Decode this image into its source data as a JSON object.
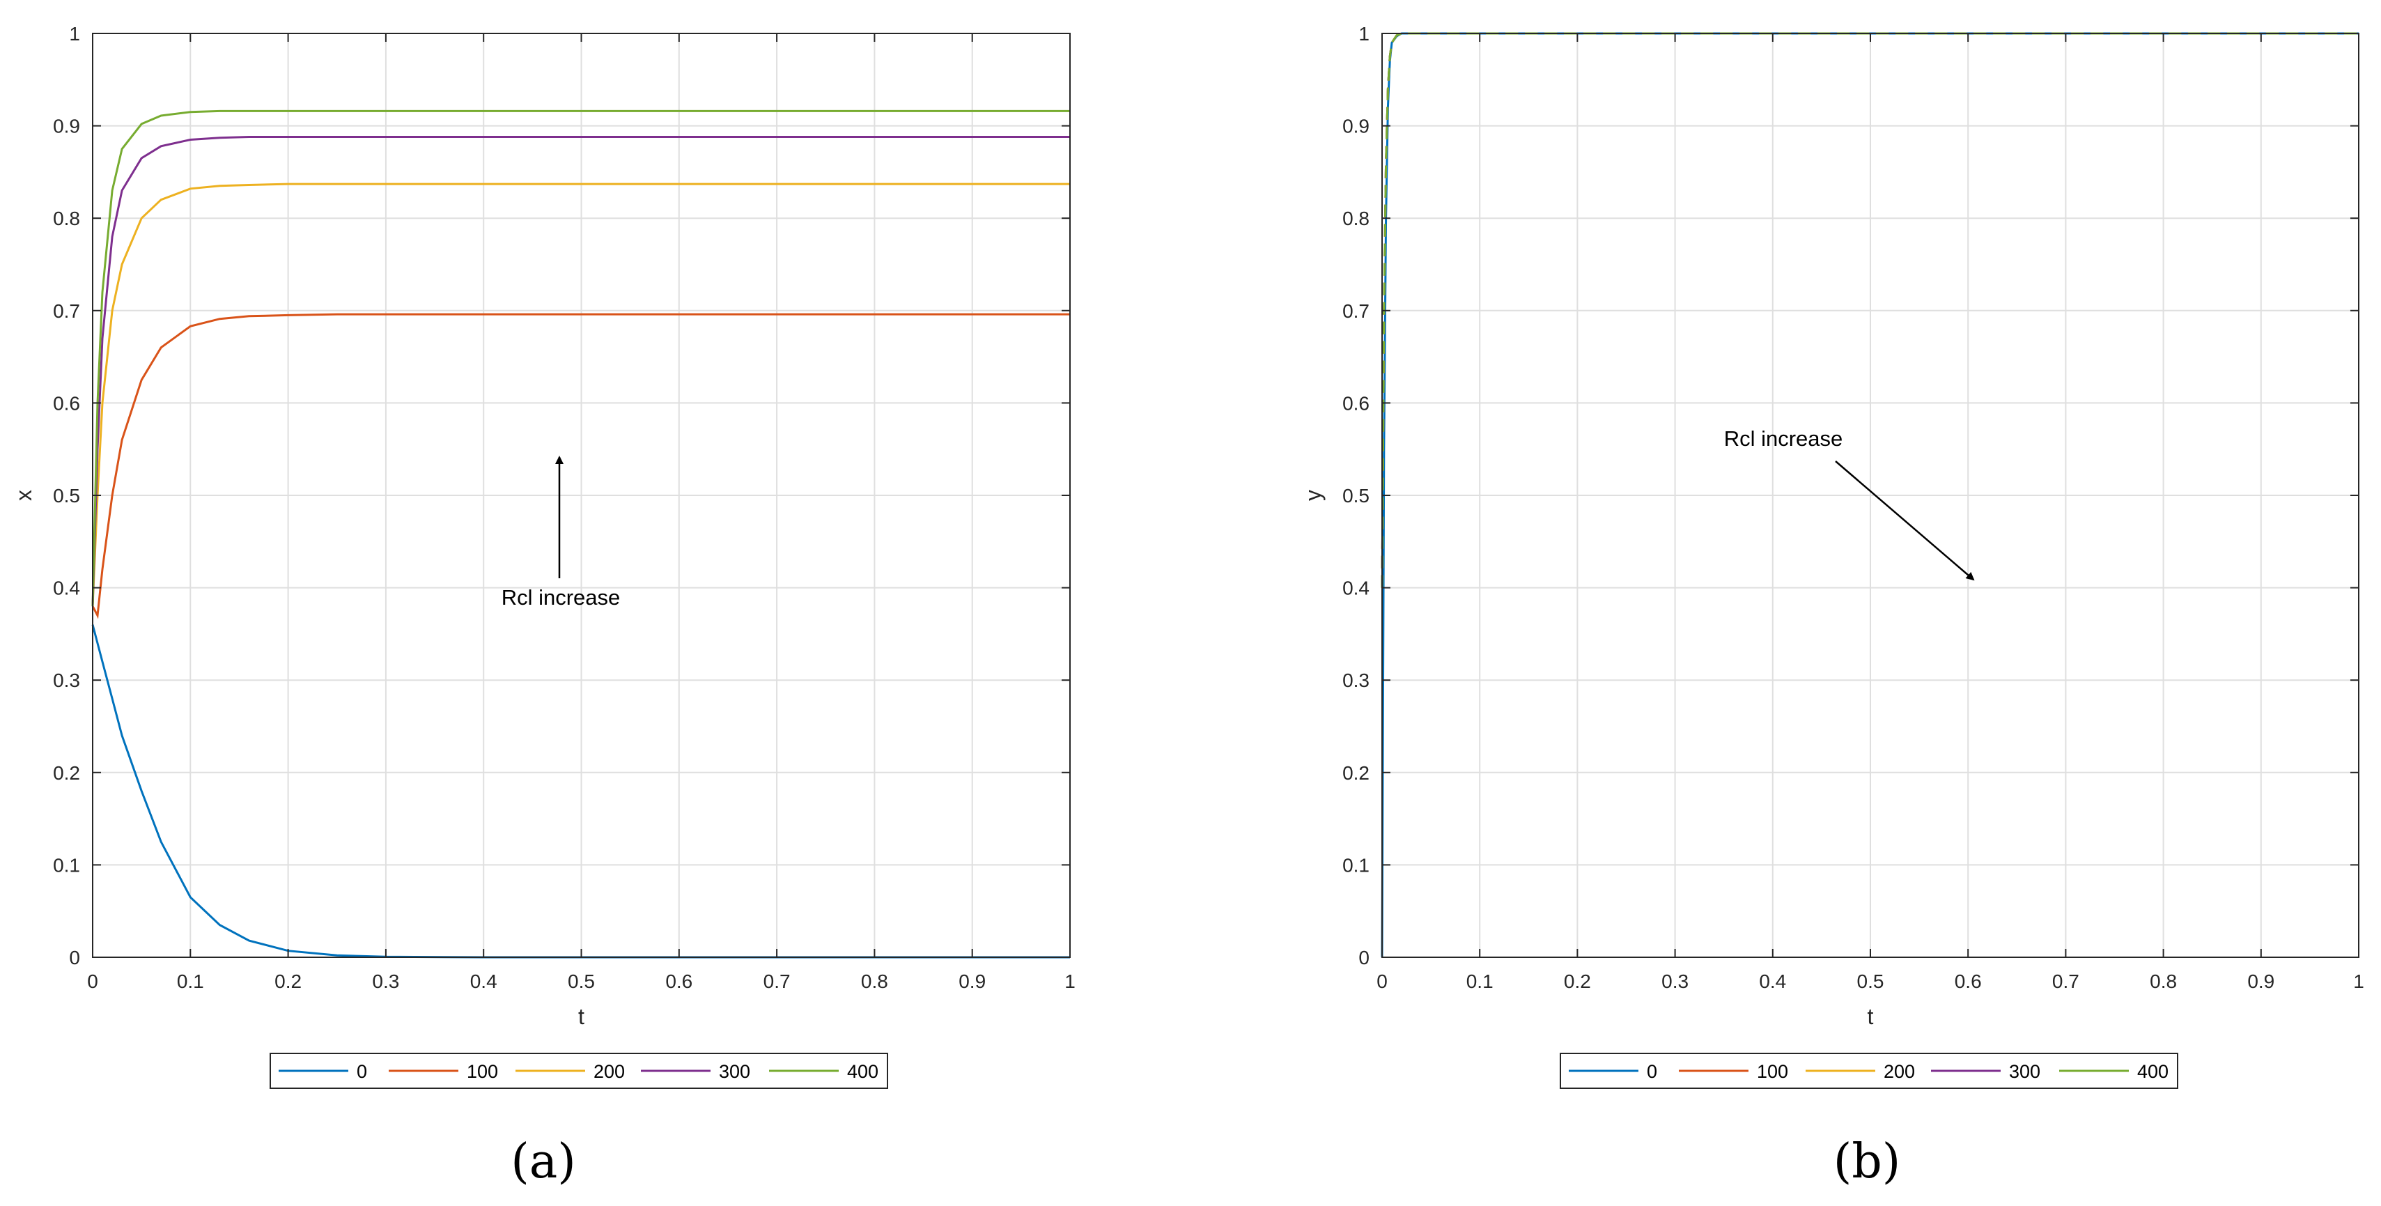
{
  "chart_data": [
    {
      "type": "line",
      "panel_label": "(a)",
      "xlabel": "t",
      "ylabel": "x",
      "xlim": [
        0,
        1
      ],
      "ylim": [
        0,
        1
      ],
      "xticks": [
        "0",
        "0.1",
        "0.2",
        "0.3",
        "0.4",
        "0.5",
        "0.6",
        "0.7",
        "0.8",
        "0.9",
        "1"
      ],
      "yticks": [
        "0",
        "0.1",
        "0.2",
        "0.3",
        "0.4",
        "0.5",
        "0.6",
        "0.7",
        "0.8",
        "0.9",
        "1"
      ],
      "grid": true,
      "legend_position": "bottom-outside",
      "annotation": {
        "text": "Rcl increase",
        "arrow": "up"
      },
      "series": [
        {
          "name": "0",
          "color": "#0072BD",
          "x": [
            0,
            0.01,
            0.02,
            0.03,
            0.05,
            0.07,
            0.1,
            0.13,
            0.16,
            0.2,
            0.25,
            0.3,
            0.4,
            0.5,
            0.7,
            1.0
          ],
          "y": [
            0.36,
            0.32,
            0.28,
            0.24,
            0.18,
            0.125,
            0.065,
            0.035,
            0.018,
            0.007,
            0.002,
            0.0005,
            0,
            0,
            0,
            0
          ]
        },
        {
          "name": "100",
          "color": "#D95319",
          "x": [
            0,
            0.005,
            0.01,
            0.02,
            0.03,
            0.05,
            0.07,
            0.1,
            0.13,
            0.16,
            0.2,
            0.25,
            0.3,
            0.5,
            0.7,
            1.0
          ],
          "y": [
            0.38,
            0.37,
            0.42,
            0.5,
            0.56,
            0.625,
            0.66,
            0.683,
            0.691,
            0.694,
            0.695,
            0.696,
            0.696,
            0.696,
            0.696,
            0.696
          ]
        },
        {
          "name": "200",
          "color": "#EDB120",
          "x": [
            0,
            0.005,
            0.01,
            0.02,
            0.03,
            0.05,
            0.07,
            0.1,
            0.13,
            0.16,
            0.2,
            0.3,
            0.5,
            1.0
          ],
          "y": [
            0.38,
            0.5,
            0.6,
            0.7,
            0.75,
            0.8,
            0.82,
            0.832,
            0.835,
            0.836,
            0.837,
            0.837,
            0.837,
            0.837
          ]
        },
        {
          "name": "300",
          "color": "#7E2F8E",
          "x": [
            0,
            0.005,
            0.01,
            0.02,
            0.03,
            0.05,
            0.07,
            0.1,
            0.13,
            0.16,
            0.2,
            0.3,
            0.5,
            1.0
          ],
          "y": [
            0.38,
            0.55,
            0.67,
            0.78,
            0.83,
            0.865,
            0.878,
            0.885,
            0.887,
            0.888,
            0.888,
            0.888,
            0.888,
            0.888
          ]
        },
        {
          "name": "400",
          "color": "#77AC30",
          "x": [
            0,
            0.005,
            0.01,
            0.02,
            0.03,
            0.05,
            0.07,
            0.1,
            0.13,
            0.16,
            0.2,
            0.3,
            0.5,
            1.0
          ],
          "y": [
            0.38,
            0.6,
            0.72,
            0.83,
            0.875,
            0.902,
            0.911,
            0.915,
            0.916,
            0.916,
            0.916,
            0.916,
            0.916,
            0.916
          ]
        }
      ]
    },
    {
      "type": "line",
      "panel_label": "(b)",
      "xlabel": "t",
      "ylabel": "y",
      "xlim": [
        0,
        1
      ],
      "ylim": [
        0,
        1
      ],
      "xticks": [
        "0",
        "0.1",
        "0.2",
        "0.3",
        "0.4",
        "0.5",
        "0.6",
        "0.7",
        "0.8",
        "0.9",
        "1"
      ],
      "yticks": [
        "0",
        "0.1",
        "0.2",
        "0.3",
        "0.4",
        "0.5",
        "0.6",
        "0.7",
        "0.8",
        "0.9",
        "1"
      ],
      "grid": true,
      "legend_position": "bottom-outside",
      "annotation": {
        "text": "Rcl increase",
        "arrow": "down-right"
      },
      "series": [
        {
          "name": "0",
          "color": "#0072BD",
          "x": [
            0,
            0.002,
            0.004,
            0.006,
            0.008,
            0.01,
            0.015,
            0.02,
            0.03,
            1.0
          ],
          "y": [
            0.0,
            0.55,
            0.8,
            0.92,
            0.97,
            0.99,
            0.997,
            1.0,
            1.0,
            1.0
          ]
        },
        {
          "name": "100",
          "color": "#D95319",
          "x": [
            0,
            0.002,
            0.004,
            0.006,
            0.008,
            0.01,
            0.015,
            0.02,
            0.03,
            1.0
          ],
          "y": [
            0.4,
            0.7,
            0.86,
            0.94,
            0.975,
            0.99,
            0.998,
            1.0,
            1.0,
            1.0
          ]
        },
        {
          "name": "200",
          "color": "#EDB120",
          "x": [
            0,
            0.002,
            0.004,
            0.006,
            0.008,
            0.01,
            0.015,
            0.02,
            0.03,
            1.0
          ],
          "y": [
            0.4,
            0.7,
            0.86,
            0.94,
            0.975,
            0.99,
            0.998,
            1.0,
            1.0,
            1.0
          ]
        },
        {
          "name": "300",
          "color": "#7E2F8E",
          "x": [
            0,
            0.002,
            0.004,
            0.006,
            0.008,
            0.01,
            0.015,
            0.02,
            0.03,
            1.0
          ],
          "y": [
            0.4,
            0.7,
            0.86,
            0.94,
            0.975,
            0.99,
            0.998,
            1.0,
            1.0,
            1.0
          ]
        },
        {
          "name": "400",
          "color": "#77AC30",
          "x": [
            0,
            0.002,
            0.004,
            0.006,
            0.008,
            0.01,
            0.015,
            0.02,
            0.03,
            1.0
          ],
          "y": [
            0.4,
            0.7,
            0.86,
            0.94,
            0.975,
            0.99,
            0.998,
            1.0,
            1.0,
            1.0
          ]
        }
      ]
    }
  ]
}
